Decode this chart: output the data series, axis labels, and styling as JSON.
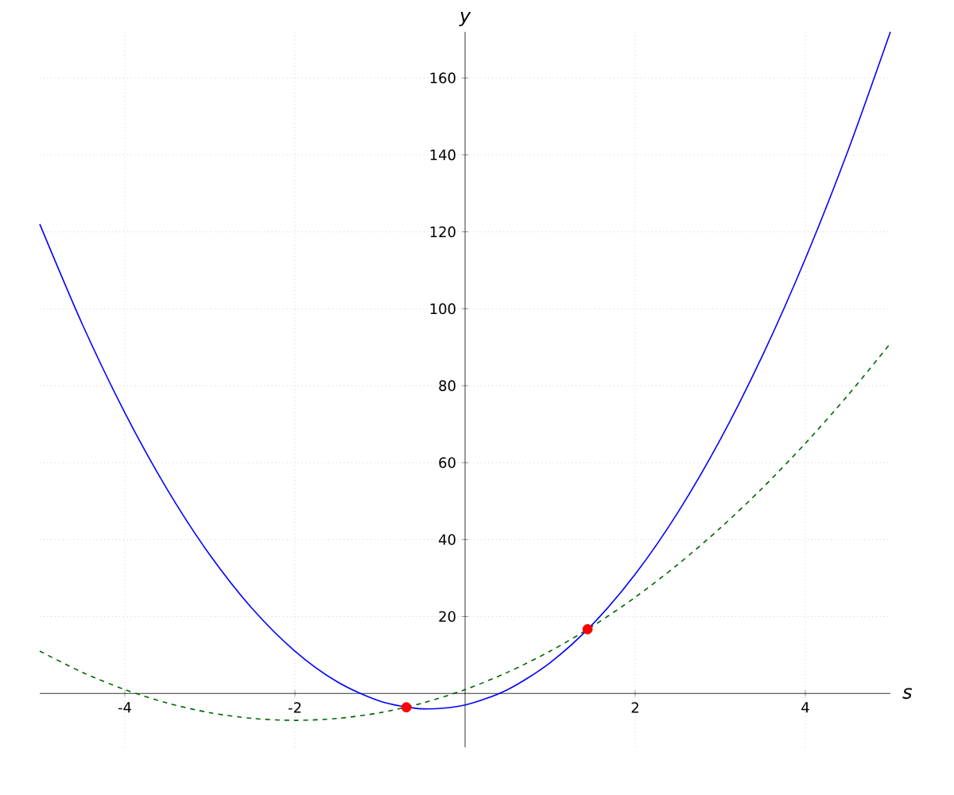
{
  "chart_data": {
    "type": "line",
    "xlabel": "s",
    "ylabel": "y",
    "xlim": [
      -5,
      5
    ],
    "ylim": [
      -14,
      172
    ],
    "xticks": [
      -4,
      -2,
      2,
      4
    ],
    "yticks": [
      20,
      40,
      60,
      80,
      100,
      120,
      140,
      160
    ],
    "grid": true,
    "series": [
      {
        "color": "#0000ff",
        "line_style": "solid",
        "x": [
          -5,
          -4.5,
          -4,
          -3.5,
          -3,
          -2.5,
          -2,
          -1.5,
          -1,
          -0.5,
          0,
          0.5,
          1,
          1.5,
          2,
          2.5,
          3,
          3.5,
          4,
          4.5,
          5
        ],
        "values": [
          122,
          96,
          73,
          53,
          36,
          22,
          11,
          3,
          -2,
          -4,
          -3,
          1,
          8,
          18,
          31,
          47,
          66,
          88,
          113,
          141,
          172
        ]
      },
      {
        "color": "#006400",
        "line_style": "dashed",
        "x": [
          -5,
          -4.5,
          -4,
          -3.5,
          -3,
          -2.5,
          -2,
          -1.5,
          -1,
          -0.5,
          0,
          0.5,
          1,
          1.5,
          2,
          2.5,
          3,
          3.5,
          4,
          4.5,
          5
        ],
        "values": [
          11,
          5.5,
          1,
          -2.5,
          -5,
          -6.5,
          -7,
          -6.5,
          -5,
          -2.5,
          1,
          5.5,
          11,
          17.5,
          25,
          33.5,
          43,
          53.5,
          65,
          77.5,
          91
        ]
      },
      {
        "type": "scatter",
        "color": "#ff0000",
        "marker": "circle",
        "x": [
          -0.69,
          1.44
        ],
        "values": [
          -3.6,
          16.7
        ]
      }
    ]
  }
}
